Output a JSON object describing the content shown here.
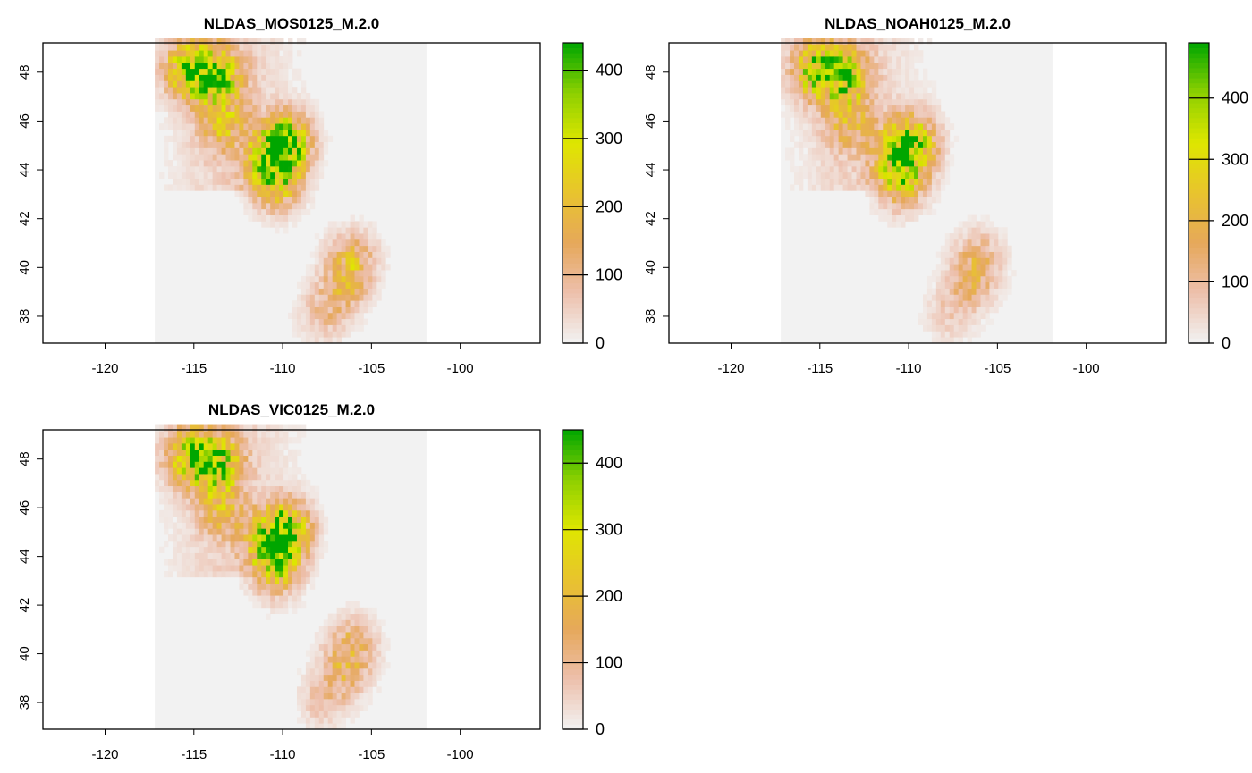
{
  "chart_data": [
    {
      "type": "heatmap",
      "title": "NLDAS_MOS0125_M.2.0",
      "x_ticks": [
        "-120",
        "-115",
        "-110",
        "-105",
        "-100"
      ],
      "y_ticks": [
        "38",
        "40",
        "42",
        "44",
        "46",
        "48"
      ],
      "xlim": [
        -123.5,
        -95.5
      ],
      "ylim": [
        36.9,
        49.2
      ],
      "data_extent": {
        "lon": [
          -117.2,
          -101.9
        ],
        "lat": [
          36.9,
          49.2
        ]
      },
      "legend": {
        "ticks": [
          "0",
          "100",
          "200",
          "300",
          "400"
        ],
        "range": [
          0,
          440
        ]
      },
      "hotspots": [
        {
          "lon": -115.4,
          "lat": 48.0,
          "value": 340
        },
        {
          "lon": -113.8,
          "lat": 47.7,
          "value": 360
        },
        {
          "lon": -110.7,
          "lat": 44.4,
          "value": 320
        },
        {
          "lon": -109.9,
          "lat": 45.0,
          "value": 380
        },
        {
          "lon": -110.5,
          "lat": 43.3,
          "value": 220
        },
        {
          "lon": -113.5,
          "lat": 45.8,
          "value": 180
        },
        {
          "lon": -106.2,
          "lat": 40.3,
          "value": 150
        },
        {
          "lon": -106.6,
          "lat": 39.2,
          "value": 140
        },
        {
          "lon": -107.8,
          "lat": 38.0,
          "value": 90
        }
      ]
    },
    {
      "type": "heatmap",
      "title": "NLDAS_NOAH0125_M.2.0",
      "x_ticks": [
        "-120",
        "-115",
        "-110",
        "-105",
        "-100"
      ],
      "y_ticks": [
        "38",
        "40",
        "42",
        "44",
        "46",
        "48"
      ],
      "xlim": [
        -123.5,
        -95.5
      ],
      "ylim": [
        36.9,
        49.2
      ],
      "data_extent": {
        "lon": [
          -117.2,
          -101.9
        ],
        "lat": [
          36.9,
          49.2
        ]
      },
      "legend": {
        "ticks": [
          "0",
          "100",
          "200",
          "300",
          "400"
        ],
        "range": [
          0,
          490
        ]
      },
      "hotspots": [
        {
          "lon": -115.4,
          "lat": 48.0,
          "value": 360
        },
        {
          "lon": -113.8,
          "lat": 47.7,
          "value": 380
        },
        {
          "lon": -110.7,
          "lat": 44.4,
          "value": 300
        },
        {
          "lon": -109.9,
          "lat": 45.0,
          "value": 360
        },
        {
          "lon": -110.5,
          "lat": 43.3,
          "value": 200
        },
        {
          "lon": -113.5,
          "lat": 45.8,
          "value": 170
        },
        {
          "lon": -106.2,
          "lat": 40.3,
          "value": 130
        },
        {
          "lon": -106.6,
          "lat": 39.2,
          "value": 120
        },
        {
          "lon": -107.8,
          "lat": 38.0,
          "value": 70
        }
      ]
    },
    {
      "type": "heatmap",
      "title": "NLDAS_VIC0125_M.2.0",
      "x_ticks": [
        "-120",
        "-115",
        "-110",
        "-105",
        "-100"
      ],
      "y_ticks": [
        "38",
        "40",
        "42",
        "44",
        "46",
        "48"
      ],
      "xlim": [
        -123.5,
        -95.5
      ],
      "ylim": [
        36.9,
        49.2
      ],
      "data_extent": {
        "lon": [
          -117.2,
          -101.9
        ],
        "lat": [
          36.9,
          49.2
        ]
      },
      "legend": {
        "ticks": [
          "0",
          "100",
          "200",
          "300",
          "400"
        ],
        "range": [
          0,
          450
        ]
      },
      "hotspots": [
        {
          "lon": -115.4,
          "lat": 48.0,
          "value": 320
        },
        {
          "lon": -113.8,
          "lat": 47.7,
          "value": 340
        },
        {
          "lon": -110.7,
          "lat": 44.4,
          "value": 310
        },
        {
          "lon": -109.9,
          "lat": 45.0,
          "value": 350
        },
        {
          "lon": -110.5,
          "lat": 43.3,
          "value": 200
        },
        {
          "lon": -113.5,
          "lat": 45.8,
          "value": 160
        },
        {
          "lon": -106.2,
          "lat": 40.3,
          "value": 140
        },
        {
          "lon": -106.6,
          "lat": 39.2,
          "value": 130
        },
        {
          "lon": -107.8,
          "lat": 38.0,
          "value": 80
        }
      ]
    }
  ],
  "colors": {
    "background_fill": "#f2f2f2",
    "scale": [
      "#f2f2f2",
      "#edc0ad",
      "#e6a85b",
      "#e8c32e",
      "#dfe600",
      "#8ed000",
      "#00a600"
    ]
  }
}
